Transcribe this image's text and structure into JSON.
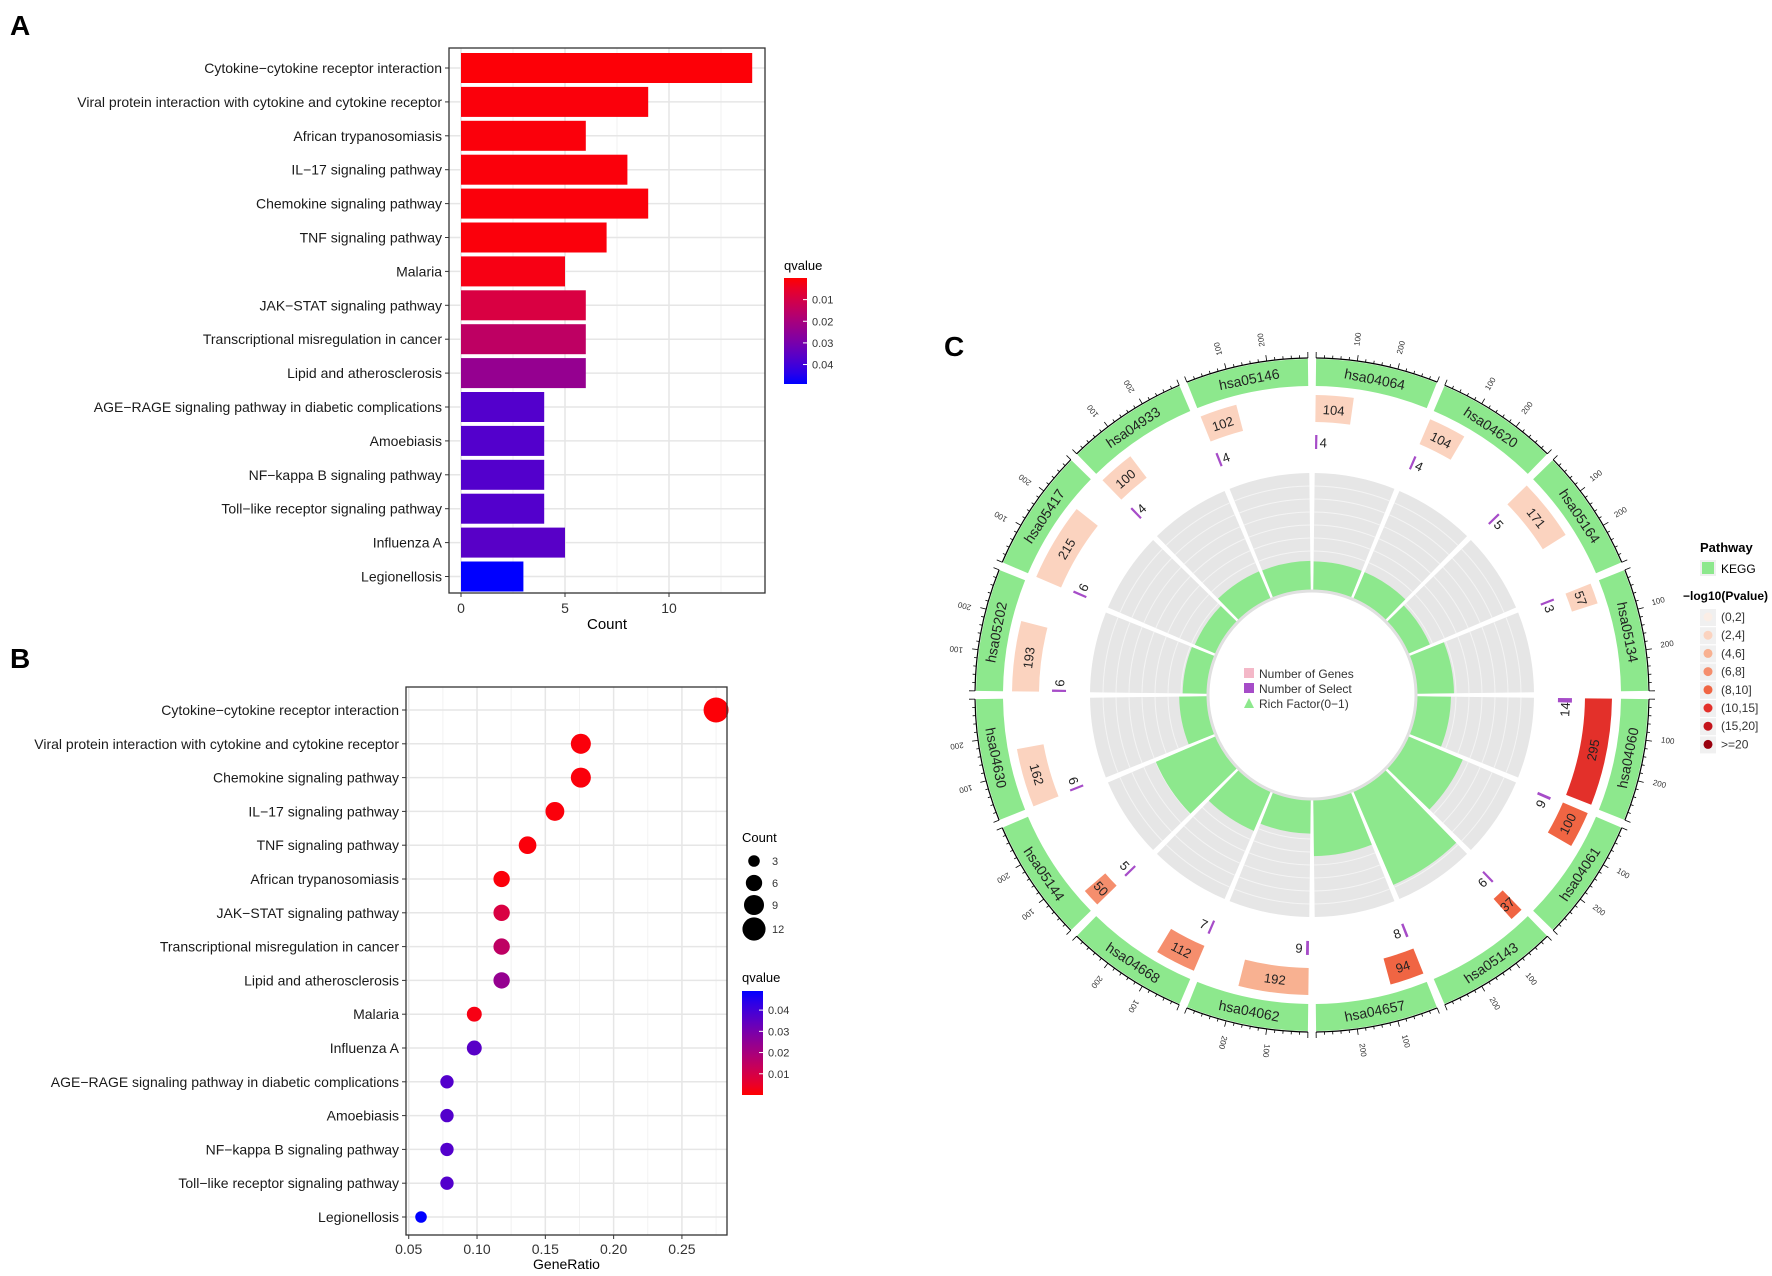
{
  "chart_data": [
    {
      "panel": "A",
      "type": "bar",
      "orientation": "horizontal",
      "xlabel": "Count",
      "xlim": [
        0,
        14.6
      ],
      "xticks": [
        "0",
        "5",
        "10"
      ],
      "legend": {
        "title": "qvalue",
        "ticks": [
          "0.01",
          "0.02",
          "0.03",
          "0.04"
        ],
        "placement": "right",
        "low_color": "#ff0000",
        "high_color": "#0000ff",
        "range": [
          0,
          0.049
        ]
      },
      "categories": [
        "Cytokine−cytokine receptor interaction",
        "Viral protein interaction with cytokine and cytokine receptor",
        "African trypanosomiasis",
        "IL−17 signaling pathway",
        "Chemokine signaling pathway",
        "TNF signaling pathway",
        "Malaria",
        "JAK−STAT signaling pathway",
        "Transcriptional misregulation in cancer",
        "Lipid and atherosclerosis",
        "AGE−RAGE signaling pathway in diabetic complications",
        "Amoebiasis",
        "NF−kappa B signaling pathway",
        "Toll−like receptor signaling pathway",
        "Influenza A",
        "Legionellosis"
      ],
      "values": [
        14,
        9,
        6,
        8,
        9,
        7,
        5,
        6,
        6,
        6,
        4,
        4,
        4,
        4,
        5,
        3
      ],
      "qvalues": [
        0.0005,
        0.001,
        0.001,
        0.001,
        0.001,
        0.001,
        0.002,
        0.009,
        0.015,
        0.024,
        0.037,
        0.037,
        0.037,
        0.037,
        0.036,
        0.049
      ]
    },
    {
      "panel": "B",
      "type": "scatter",
      "xlabel": "GeneRatio",
      "xlim": [
        0.048,
        0.283
      ],
      "xticks": [
        "0.05",
        "0.10",
        "0.15",
        "0.20",
        "0.25"
      ],
      "size_legend": {
        "title": "Count",
        "values": [
          "3",
          "6",
          "9",
          "12"
        ]
      },
      "legend": {
        "title": "qvalue",
        "ticks": [
          "0.04",
          "0.03",
          "0.02",
          "0.01"
        ],
        "low_color": "#ff0000",
        "high_color": "#0000ff",
        "range": [
          0,
          0.049
        ]
      },
      "categories": [
        "Cytokine−cytokine receptor interaction",
        "Viral protein interaction with cytokine and cytokine receptor",
        "Chemokine signaling pathway",
        "IL−17 signaling pathway",
        "TNF signaling pathway",
        "African trypanosomiasis",
        "JAK−STAT signaling pathway",
        "Transcriptional misregulation in cancer",
        "Lipid and atherosclerosis",
        "Malaria",
        "Influenza A",
        "AGE−RAGE signaling pathway in diabetic complications",
        "Amoebiasis",
        "NF−kappa B signaling pathway",
        "Toll−like receptor signaling pathway",
        "Legionellosis"
      ],
      "x": [
        0.275,
        0.176,
        0.176,
        0.157,
        0.137,
        0.118,
        0.118,
        0.118,
        0.118,
        0.098,
        0.098,
        0.078,
        0.078,
        0.078,
        0.078,
        0.059
      ],
      "counts": [
        14,
        9,
        9,
        8,
        7,
        6,
        6,
        6,
        6,
        5,
        5,
        4,
        4,
        4,
        4,
        3
      ],
      "qvalues": [
        0.0005,
        0.001,
        0.001,
        0.001,
        0.001,
        0.001,
        0.009,
        0.015,
        0.024,
        0.002,
        0.036,
        0.037,
        0.037,
        0.037,
        0.037,
        0.049
      ]
    },
    {
      "panel": "C",
      "type": "circular",
      "ring_tick_labels": [
        "100",
        "200"
      ],
      "center_legend": [
        "Number of Genes",
        "Number of Select",
        "Rich Factor(0−1)"
      ],
      "pathway_legend": {
        "title": "Pathway",
        "label": "KEGG",
        "color": "#8de88d"
      },
      "pvalue_legend": {
        "title": "−log10(Pvalue)",
        "bins": [
          "(0,2]",
          "(2,4]",
          "(4,6]",
          "(6,8]",
          "(8,10]",
          "(10,15]",
          "(15,20]",
          ">=20"
        ],
        "colors": [
          "#fbeee6",
          "#fbd3bf",
          "#f8b191",
          "#f58e6d",
          "#f06543",
          "#e3302a",
          "#c4141b",
          "#99000d"
        ]
      },
      "sectors": [
        {
          "id": "hsa04064",
          "genes": 104,
          "select": 4,
          "bin": 1
        },
        {
          "id": "hsa04620",
          "genes": 104,
          "select": 4,
          "bin": 1
        },
        {
          "id": "hsa05164",
          "genes": 171,
          "select": 5,
          "bin": 1
        },
        {
          "id": "hsa05134",
          "genes": 57,
          "select": 3,
          "bin": 1
        },
        {
          "id": "hsa04060",
          "genes": 295,
          "select": 14,
          "bin": 5
        },
        {
          "id": "hsa04061",
          "genes": 100,
          "select": 9,
          "bin": 4
        },
        {
          "id": "hsa05143",
          "genes": 37,
          "select": 6,
          "bin": 4
        },
        {
          "id": "hsa04657",
          "genes": 94,
          "select": 8,
          "bin": 4
        },
        {
          "id": "hsa04062",
          "genes": 192,
          "select": 9,
          "bin": 2
        },
        {
          "id": "hsa04668",
          "genes": 112,
          "select": 7,
          "bin": 3
        },
        {
          "id": "hsa05144",
          "genes": 50,
          "select": 5,
          "bin": 3
        },
        {
          "id": "hsa04630",
          "genes": 162,
          "select": 6,
          "bin": 1
        },
        {
          "id": "hsa05202",
          "genes": 193,
          "select": 6,
          "bin": 1
        },
        {
          "id": "hsa05417",
          "genes": 215,
          "select": 6,
          "bin": 1
        },
        {
          "id": "hsa04933",
          "genes": 100,
          "select": 4,
          "bin": 1
        },
        {
          "id": "hsa05146",
          "genes": 102,
          "select": 4,
          "bin": 1
        }
      ]
    }
  ],
  "panel_labels": [
    "A",
    "B",
    "C"
  ]
}
